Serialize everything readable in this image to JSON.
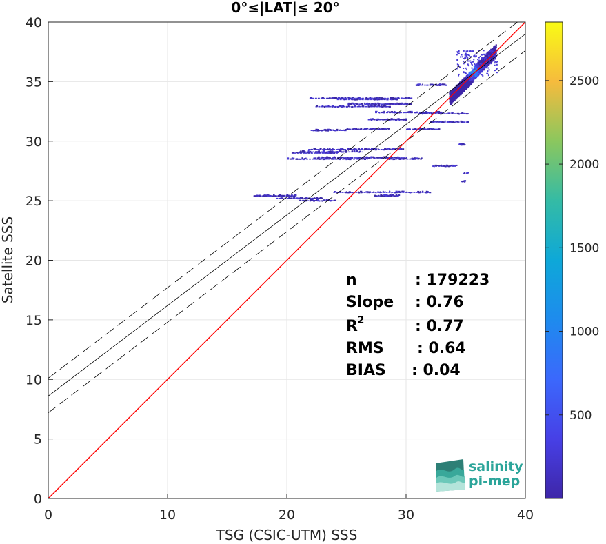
{
  "chart_data": {
    "type": "scatter",
    "title": "0°≤|LAT|≤ 20°",
    "xlabel": "TSG (CSIC-UTM) SSS",
    "ylabel": "Satellite SSS",
    "xlim": [
      0,
      40
    ],
    "ylim": [
      0,
      40
    ],
    "xticks": [
      "0",
      "10",
      "20",
      "30",
      "40"
    ],
    "yticks": [
      "0",
      "5",
      "10",
      "15",
      "20",
      "25",
      "30",
      "35",
      "40"
    ],
    "grid": true,
    "colorbar": {
      "range": [
        0,
        2850
      ],
      "ticks": [
        "500",
        "1000",
        "1500",
        "2000",
        "2500"
      ],
      "tick_values": [
        500,
        1000,
        1500,
        2000,
        2500
      ],
      "colormap": "parula"
    },
    "lines": {
      "identity": {
        "slope": 1,
        "intercept": 0,
        "color": "#ff0000"
      },
      "fit": {
        "slope": 0.76,
        "intercept": 8.6,
        "color": "#000000"
      },
      "fit_upper": {
        "slope": 0.76,
        "intercept": 10.1
      },
      "fit_lower": {
        "slope": 0.76,
        "intercept": 7.2
      }
    },
    "stats": [
      {
        "label": "n",
        "value": ": 179223"
      },
      {
        "label": "Slope",
        "value": ": 0.76"
      },
      {
        "label": "R",
        "sup": "2",
        "value": ": 0.77"
      },
      {
        "label": "RMS",
        "value": ": 0.64"
      },
      {
        "label": "BIAS",
        "value": ": 0.04"
      }
    ],
    "horizontal_streaks": [
      {
        "x0": 21.9,
        "x1": 30.4,
        "y": 33.6,
        "density": 60
      },
      {
        "x0": 24.2,
        "x1": 29.2,
        "y": 33.5,
        "density": 40
      },
      {
        "x0": 25.1,
        "x1": 30.4,
        "y": 33.1,
        "density": 80
      },
      {
        "x0": 22.4,
        "x1": 28.6,
        "y": 32.9,
        "density": 50
      },
      {
        "x0": 27.4,
        "x1": 33.2,
        "y": 32.4,
        "density": 40
      },
      {
        "x0": 31.0,
        "x1": 35.3,
        "y": 32.3,
        "density": 30
      },
      {
        "x0": 26.8,
        "x1": 30.0,
        "y": 31.8,
        "density": 50
      },
      {
        "x0": 32.0,
        "x1": 35.3,
        "y": 31.6,
        "density": 40
      },
      {
        "x0": 25.0,
        "x1": 28.6,
        "y": 31.0,
        "density": 40
      },
      {
        "x0": 22.0,
        "x1": 24.9,
        "y": 30.9,
        "density": 30
      },
      {
        "x0": 30.0,
        "x1": 32.7,
        "y": 31.0,
        "density": 30
      },
      {
        "x0": 26.0,
        "x1": 29.7,
        "y": 29.3,
        "density": 40
      },
      {
        "x0": 21.8,
        "x1": 25.8,
        "y": 29.3,
        "density": 40
      },
      {
        "x0": 21.0,
        "x1": 26.4,
        "y": 29.1,
        "density": 40
      },
      {
        "x0": 20.4,
        "x1": 24.3,
        "y": 29.0,
        "density": 30
      },
      {
        "x0": 22.6,
        "x1": 30.0,
        "y": 28.6,
        "density": 60
      },
      {
        "x0": 20.0,
        "x1": 26.8,
        "y": 28.5,
        "density": 40
      },
      {
        "x0": 28.4,
        "x1": 31.3,
        "y": 28.5,
        "density": 30
      },
      {
        "x0": 17.2,
        "x1": 20.7,
        "y": 25.4,
        "density": 60
      },
      {
        "x0": 19.1,
        "x1": 23.0,
        "y": 25.2,
        "density": 40
      },
      {
        "x0": 23.9,
        "x1": 32.0,
        "y": 25.7,
        "density": 60
      },
      {
        "x0": 27.3,
        "x1": 29.4,
        "y": 25.4,
        "density": 30
      },
      {
        "x0": 21.0,
        "x1": 24.0,
        "y": 25.0,
        "density": 30
      },
      {
        "x0": 30.8,
        "x1": 33.4,
        "y": 34.7,
        "density": 30
      },
      {
        "x0": 32.2,
        "x1": 34.2,
        "y": 27.9,
        "density": 20
      },
      {
        "x0": 34.4,
        "x1": 35.0,
        "y": 29.7,
        "density": 8
      },
      {
        "x0": 34.8,
        "x1": 35.2,
        "y": 27.3,
        "density": 5
      },
      {
        "x0": 34.6,
        "x1": 35.0,
        "y": 26.6,
        "density": 5
      }
    ],
    "dense_cluster": {
      "x": 35.6,
      "y": 35.9,
      "peak_count": 2850
    }
  },
  "logo": {
    "line1": "salinity",
    "line2": "pi-mep"
  }
}
